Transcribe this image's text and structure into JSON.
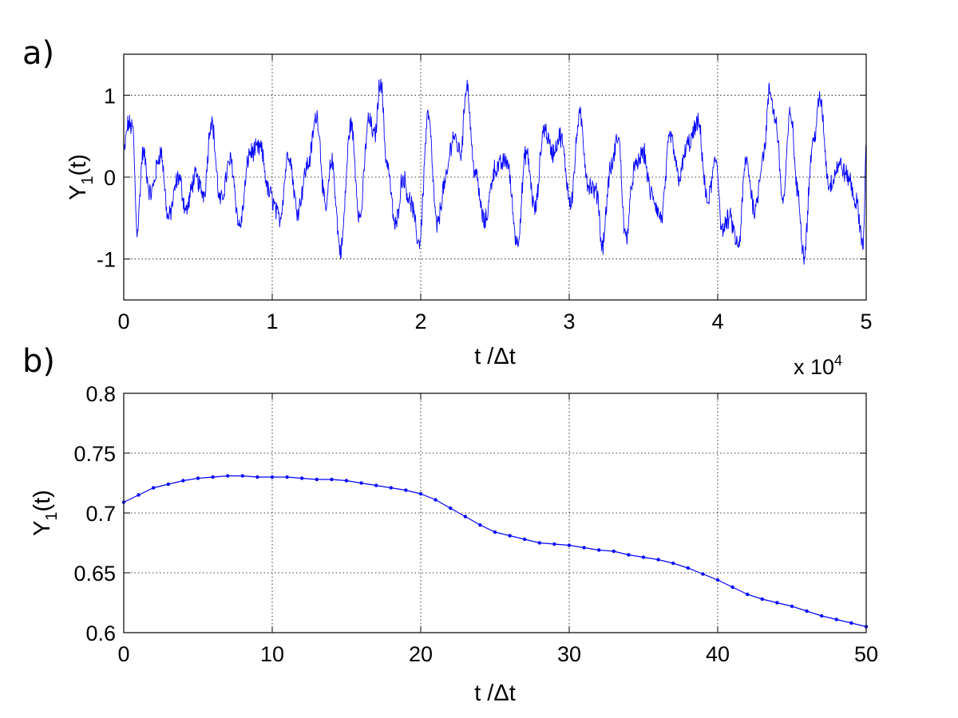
{
  "panels": {
    "a": "a)",
    "b": "b)"
  },
  "colors": {
    "series": "#0000ff",
    "axes": "#000000",
    "grid": "#000000",
    "background": "#ffffff"
  },
  "chart_data": [
    {
      "type": "line",
      "panel_label": "a)",
      "xlabel_pre": "t /",
      "xlabel_sym": "Δt",
      "ylabel_main": "Y",
      "ylabel_sub": "1",
      "ylabel_post": "(t)",
      "xlim": [
        0,
        50000
      ],
      "ylim": [
        -1.5,
        1.5
      ],
      "xticks": [
        0,
        10000,
        20000,
        30000,
        40000,
        50000
      ],
      "xtick_labels": [
        "0",
        "1",
        "2",
        "3",
        "4",
        "5"
      ],
      "yticks": [
        1,
        0,
        -1
      ],
      "ytick_labels": [
        "1",
        "0",
        "-1"
      ],
      "x_multiplier_base": "x 10",
      "x_multiplier_exp": "4",
      "grid": true,
      "line_style": "dotted grid, thin solid line",
      "anchor_points": [
        [
          0,
          0.3
        ],
        [
          300,
          0.65
        ],
        [
          600,
          0.6
        ],
        [
          900,
          -0.65
        ],
        [
          1300,
          0.3
        ],
        [
          1800,
          -0.2
        ],
        [
          2500,
          0.3
        ],
        [
          3000,
          -0.5
        ],
        [
          3700,
          0.0
        ],
        [
          4200,
          -0.4
        ],
        [
          4800,
          0.0
        ],
        [
          5400,
          -0.2
        ],
        [
          5900,
          0.7
        ],
        [
          6500,
          -0.3
        ],
        [
          7200,
          0.2
        ],
        [
          7800,
          -0.6
        ],
        [
          8500,
          0.3
        ],
        [
          9200,
          0.35
        ],
        [
          9800,
          -0.2
        ],
        [
          10500,
          -0.5
        ],
        [
          11100,
          0.3
        ],
        [
          11700,
          -0.4
        ],
        [
          12400,
          0.15
        ],
        [
          13000,
          0.75
        ],
        [
          13600,
          -0.4
        ],
        [
          14000,
          0.2
        ],
        [
          14600,
          -0.9
        ],
        [
          15300,
          0.65
        ],
        [
          15900,
          -0.5
        ],
        [
          16500,
          0.7
        ],
        [
          16900,
          0.5
        ],
        [
          17300,
          1.2
        ],
        [
          17700,
          0.2
        ],
        [
          18300,
          -0.6
        ],
        [
          18800,
          0.0
        ],
        [
          19300,
          -0.3
        ],
        [
          19900,
          -0.8
        ],
        [
          20500,
          0.75
        ],
        [
          21100,
          -0.6
        ],
        [
          21600,
          -0.1
        ],
        [
          22200,
          0.5
        ],
        [
          22700,
          0.3
        ],
        [
          23100,
          1.15
        ],
        [
          23600,
          0.1
        ],
        [
          24300,
          -0.55
        ],
        [
          25000,
          0.1
        ],
        [
          25800,
          0.2
        ],
        [
          26500,
          -0.8
        ],
        [
          27100,
          0.3
        ],
        [
          27700,
          -0.4
        ],
        [
          28300,
          0.6
        ],
        [
          28900,
          0.3
        ],
        [
          29400,
          0.5
        ],
        [
          30100,
          -0.3
        ],
        [
          30700,
          0.75
        ],
        [
          31300,
          -0.1
        ],
        [
          31900,
          -0.2
        ],
        [
          32200,
          -0.85
        ],
        [
          32800,
          0.1
        ],
        [
          33300,
          0.5
        ],
        [
          33800,
          -0.75
        ],
        [
          34400,
          0.1
        ],
        [
          35000,
          0.3
        ],
        [
          35500,
          -0.2
        ],
        [
          36200,
          -0.5
        ],
        [
          36800,
          0.5
        ],
        [
          37400,
          0.0
        ],
        [
          38000,
          0.4
        ],
        [
          38700,
          0.65
        ],
        [
          39300,
          -0.3
        ],
        [
          39900,
          0.2
        ],
        [
          40300,
          -0.65
        ],
        [
          40800,
          -0.5
        ],
        [
          41400,
          -0.85
        ],
        [
          41900,
          0.2
        ],
        [
          42500,
          -0.4
        ],
        [
          43100,
          0.3
        ],
        [
          43500,
          1.05
        ],
        [
          43900,
          0.7
        ],
        [
          44400,
          -0.3
        ],
        [
          44900,
          0.8
        ],
        [
          45400,
          -0.2
        ],
        [
          45800,
          -0.95
        ],
        [
          46400,
          0.4
        ],
        [
          46900,
          0.95
        ],
        [
          47500,
          -0.1
        ],
        [
          48200,
          0.15
        ],
        [
          48800,
          0.0
        ],
        [
          49300,
          -0.3
        ],
        [
          49800,
          -0.8
        ],
        [
          50000,
          0.3
        ]
      ]
    },
    {
      "type": "line",
      "panel_label": "b)",
      "xlabel_pre": "t /",
      "xlabel_sym": "Δt",
      "ylabel_main": "Y",
      "ylabel_sub": "1",
      "ylabel_post": "(t)",
      "xlim": [
        0,
        50
      ],
      "ylim": [
        0.6,
        0.8
      ],
      "xticks": [
        0,
        10,
        20,
        30,
        40,
        50
      ],
      "xtick_labels": [
        "0",
        "10",
        "20",
        "30",
        "40",
        "50"
      ],
      "yticks": [
        0.8,
        0.75,
        0.7,
        0.65,
        0.6
      ],
      "ytick_labels": [
        "0.8",
        "0.75",
        "0.7",
        "0.65",
        "0.6"
      ],
      "grid": true,
      "markers": "dot",
      "x": [
        0,
        1,
        2,
        3,
        4,
        5,
        6,
        7,
        8,
        9,
        10,
        11,
        12,
        13,
        14,
        15,
        16,
        17,
        18,
        19,
        20,
        21,
        22,
        23,
        24,
        25,
        26,
        27,
        28,
        29,
        30,
        31,
        32,
        33,
        34,
        35,
        36,
        37,
        38,
        39,
        40,
        41,
        42,
        43,
        44,
        45,
        46,
        47,
        48,
        49,
        50
      ],
      "y": [
        0.709,
        0.715,
        0.721,
        0.724,
        0.727,
        0.729,
        0.73,
        0.731,
        0.731,
        0.73,
        0.73,
        0.73,
        0.729,
        0.728,
        0.728,
        0.727,
        0.725,
        0.723,
        0.721,
        0.719,
        0.716,
        0.711,
        0.704,
        0.697,
        0.69,
        0.684,
        0.681,
        0.678,
        0.675,
        0.674,
        0.673,
        0.671,
        0.669,
        0.668,
        0.665,
        0.663,
        0.661,
        0.658,
        0.654,
        0.649,
        0.644,
        0.638,
        0.632,
        0.628,
        0.625,
        0.622,
        0.618,
        0.614,
        0.611,
        0.608,
        0.605
      ]
    }
  ]
}
